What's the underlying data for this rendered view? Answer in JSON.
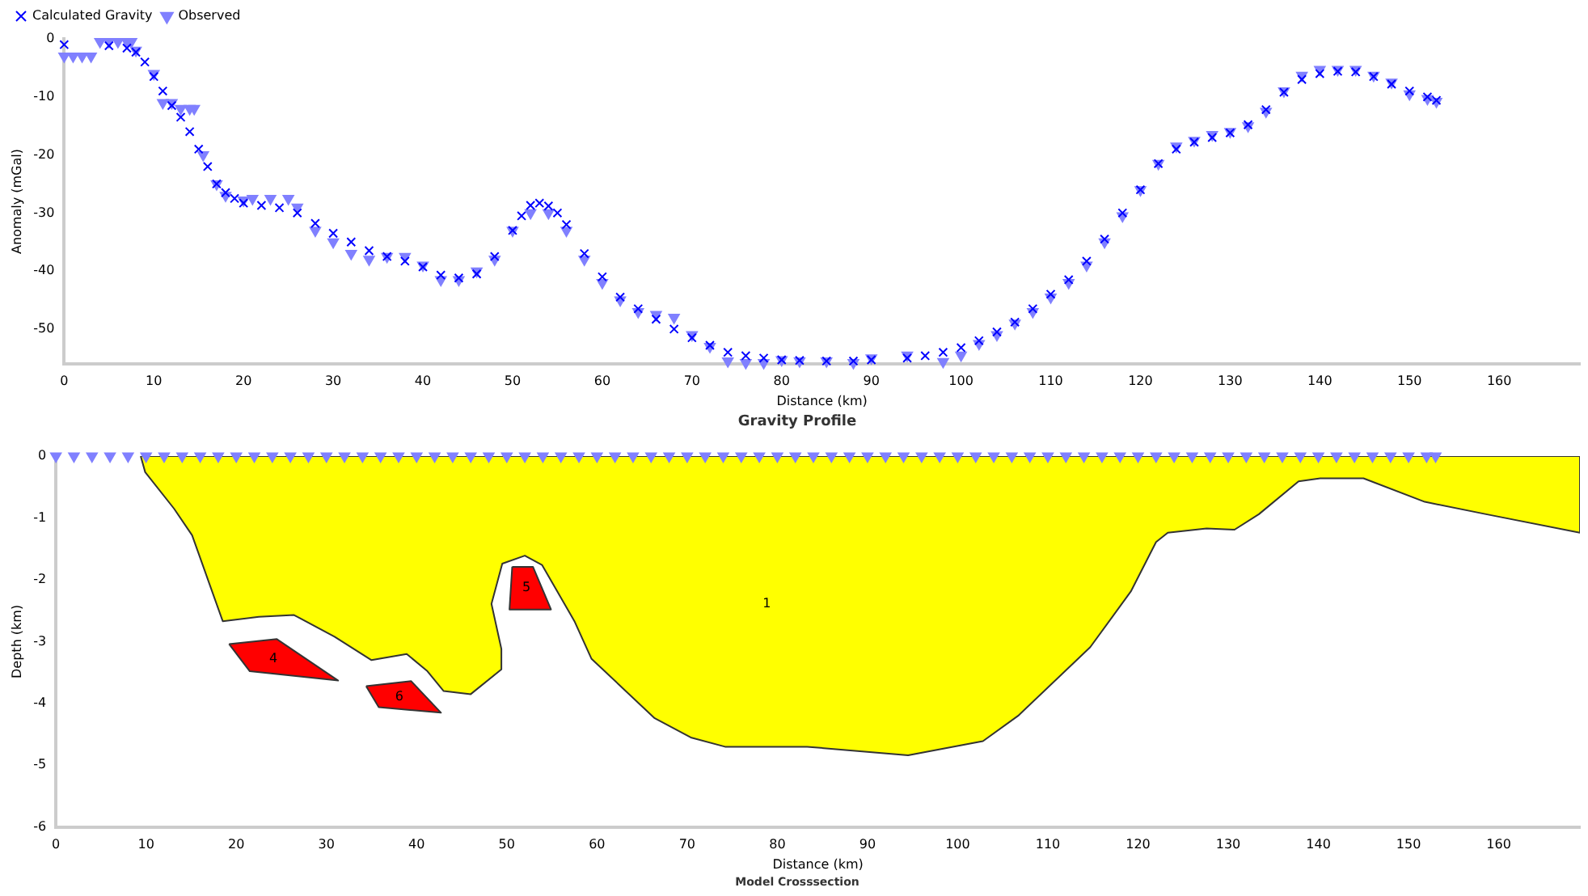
{
  "chart_data": [
    {
      "type": "scatter",
      "title": "Gravity Profile",
      "xlabel": "Distance (km)",
      "ylabel": "Anomaly (mGal)",
      "xlim": [
        0,
        169
      ],
      "ylim": [
        -56,
        0
      ],
      "xticks": [
        0,
        10,
        20,
        30,
        40,
        50,
        60,
        70,
        80,
        90,
        100,
        110,
        120,
        130,
        140,
        150,
        160
      ],
      "yticks": [
        0,
        -10,
        -20,
        -30,
        -40,
        -50
      ],
      "grid": false,
      "legend": "top left",
      "series": [
        {
          "name": "Calculated Gravity",
          "color": "#0000ff",
          "marker": "cross",
          "x": [
            0,
            5,
            7,
            8,
            9,
            10,
            11,
            12,
            13,
            14,
            15,
            16,
            17,
            18,
            19,
            20,
            22,
            24,
            26,
            28,
            30,
            32,
            34,
            36,
            38,
            40,
            42,
            44,
            46,
            48,
            50,
            51,
            52,
            53,
            54,
            55,
            56,
            58,
            60,
            62,
            64,
            66,
            68,
            70,
            72,
            74,
            76,
            78,
            80,
            82,
            85,
            88,
            90,
            94,
            96,
            98,
            100,
            102,
            104,
            106,
            108,
            110,
            112,
            114,
            116,
            118,
            120,
            122,
            124,
            126,
            128,
            130,
            132,
            134,
            136,
            138,
            140,
            142,
            144,
            146,
            148,
            150,
            152,
            153
          ],
          "values": [
            -1,
            -1.2,
            -1.6,
            -2.3,
            -4,
            -6.5,
            -9,
            -11.5,
            -13.5,
            -16,
            -19,
            -22,
            -25,
            -26.5,
            -27.5,
            -28.3,
            -28.7,
            -29.1,
            -30,
            -31.8,
            -33.5,
            -35,
            -36.5,
            -37.5,
            -38.3,
            -39.3,
            -40.7,
            -41.2,
            -40.5,
            -37.5,
            -33,
            -30.5,
            -28.7,
            -28.3,
            -28.8,
            -30,
            -32,
            -37,
            -41,
            -44.5,
            -46.5,
            -48.3,
            -50,
            -51.5,
            -52.8,
            -54,
            -54.6,
            -55,
            -55.3,
            -55.4,
            -55.5,
            -55.5,
            -55.3,
            -55,
            -54.6,
            -54,
            -53.2,
            -52,
            -50.5,
            -48.8,
            -46.5,
            -44,
            -41.5,
            -38.3,
            -34.5,
            -30,
            -26,
            -21.5,
            -19,
            -17.8,
            -17,
            -16.2,
            -14.8,
            -12.2,
            -9.2,
            -7,
            -6,
            -5.6,
            -5.7,
            -6.5,
            -7.8,
            -9,
            -10,
            -10.6
          ]
        },
        {
          "name": "Observed",
          "color": "#8080ff",
          "marker": "triangle",
          "x": [
            0,
            1,
            2,
            3,
            4,
            5,
            6,
            7,
            7.5,
            8,
            10,
            11,
            12,
            13,
            14,
            14.5,
            15.5,
            17,
            18,
            20,
            21,
            23,
            25,
            26,
            28,
            30,
            32,
            34,
            36,
            38,
            40,
            42,
            44,
            46,
            48,
            50,
            52,
            54,
            56,
            58,
            60,
            62,
            64,
            66,
            68,
            70,
            72,
            74,
            76,
            78,
            80,
            82,
            85,
            88,
            90,
            94,
            98,
            100,
            102,
            104,
            106,
            108,
            110,
            112,
            114,
            116,
            118,
            120,
            122,
            124,
            126,
            128,
            130,
            132,
            134,
            136,
            138,
            140,
            142,
            144,
            146,
            148,
            150,
            152,
            153
          ],
          "values": [
            -3,
            -3,
            -3,
            -3,
            -0.5,
            -0.5,
            -0.5,
            -0.5,
            -0.5,
            -2,
            -6,
            -11,
            -11,
            -12,
            -12,
            -12,
            -20,
            -25,
            -27,
            -27.8,
            -27.5,
            -27.5,
            -27.5,
            -29,
            -33,
            -35,
            -37,
            -38,
            -37.5,
            -37.5,
            -39,
            -41.5,
            -41.5,
            -40,
            -38,
            -33,
            -30,
            -30,
            -33,
            -38,
            -42,
            -45,
            -47,
            -47.5,
            -48,
            -51,
            -53,
            -55.5,
            -55.8,
            -55.8,
            -55.3,
            -55.5,
            -55.5,
            -55.8,
            -55,
            -54.5,
            -55.6,
            -54.5,
            -52.5,
            -51,
            -49,
            -47,
            -44.5,
            -42,
            -39,
            -35,
            -30.5,
            -26,
            -21.5,
            -18.5,
            -17.5,
            -16.5,
            -16,
            -15,
            -12.5,
            -9,
            -6.3,
            -5.3,
            -5.3,
            -5.3,
            -6.3,
            -7.5,
            -9.5,
            -10.3,
            -10.8
          ]
        }
      ]
    },
    {
      "type": "area",
      "title": "Model Crosssection",
      "xlabel": "Distance (km)",
      "ylabel": "Depth (km)",
      "xlim": [
        0,
        169
      ],
      "ylim": [
        -6,
        0
      ],
      "xticks": [
        0,
        10,
        20,
        30,
        40,
        50,
        60,
        70,
        80,
        90,
        100,
        110,
        120,
        130,
        140,
        150,
        160
      ],
      "yticks": [
        0,
        -1,
        -2,
        -3,
        -4,
        -5,
        -6
      ],
      "grid": false,
      "legend": false,
      "series": [
        {
          "name": "1",
          "color": "#ffff00",
          "x": [
            9.4,
            9.9,
            13.1,
            15.1,
            18.5,
            22.5,
            26.4,
            30.9,
            35,
            38.9,
            41.2,
            43,
            46,
            49.4,
            49.4,
            48.3,
            49.5,
            52,
            53.9,
            57.5,
            59.4,
            66.4,
            70.4,
            74.2,
            79.7,
            83.3,
            94.5,
            102.8,
            106.7,
            114.7,
            119.2,
            122,
            123.3,
            127.6,
            130.7,
            133.4,
            137.8,
            140.2,
            145,
            151.8,
            158.6,
            169,
            169,
            9.4
          ],
          "values": [
            0,
            -0.26,
            -0.85,
            -1.28,
            -2.67,
            -2.6,
            -2.57,
            -2.92,
            -3.3,
            -3.2,
            -3.48,
            -3.8,
            -3.85,
            -3.45,
            -3.12,
            -2.39,
            -1.74,
            -1.61,
            -1.76,
            -2.67,
            -3.28,
            -4.24,
            -4.55,
            -4.7,
            -4.7,
            -4.7,
            -4.84,
            -4.61,
            -4.2,
            -3.09,
            -2.19,
            -1.39,
            -1.24,
            -1.17,
            -1.19,
            -0.94,
            -0.41,
            -0.36,
            -0.36,
            -0.74,
            -0.94,
            -1.24,
            0,
            0
          ]
        },
        {
          "name": "4",
          "color": "#ff0000",
          "x": [
            19.2,
            24.5,
            31.3,
            21.5,
            19.2
          ],
          "values": [
            -3.04,
            -2.96,
            -3.63,
            -3.48,
            -3.04
          ]
        },
        {
          "name": "5",
          "color": "#ff0000",
          "x": [
            50.6,
            52.9,
            54.9,
            50.3,
            50.6
          ],
          "values": [
            -1.79,
            -1.79,
            -2.48,
            -2.48,
            -1.79
          ]
        },
        {
          "name": "6",
          "color": "#ff0000",
          "x": [
            34.4,
            39.4,
            42.7,
            35.8,
            34.4
          ],
          "values": [
            -3.72,
            -3.64,
            -4.15,
            -4.06,
            -3.72
          ]
        },
        {
          "type": "scatter",
          "color": "#8080ff",
          "marker": "triangle",
          "x": [
            0,
            2,
            4,
            6,
            8,
            10,
            12,
            14,
            16,
            18,
            20,
            22,
            24,
            26,
            28,
            30,
            32,
            34,
            36,
            38,
            40,
            42,
            44,
            46,
            48,
            50,
            52,
            54,
            56,
            58,
            60,
            62,
            64,
            66,
            68,
            70,
            72,
            74,
            76,
            78,
            80,
            82,
            84,
            86,
            88,
            90,
            92,
            94,
            96,
            98,
            100,
            102,
            104,
            106,
            108,
            110,
            112,
            114,
            116,
            118,
            120,
            122,
            124,
            126,
            128,
            130,
            132,
            134,
            136,
            138,
            140,
            142,
            144,
            146,
            148,
            150,
            152,
            153
          ],
          "values": [
            0,
            0,
            0,
            0,
            0,
            0,
            0,
            0,
            0,
            0,
            0,
            0,
            0,
            0,
            0,
            0,
            0,
            0,
            0,
            0,
            0,
            0,
            0,
            0,
            0,
            0,
            0,
            0,
            0,
            0,
            0,
            0,
            0,
            0,
            0,
            0,
            0,
            0,
            0,
            0,
            0,
            0,
            0,
            0,
            0,
            0,
            0,
            0,
            0,
            0,
            0,
            0,
            0,
            0,
            0,
            0,
            0,
            0,
            0,
            0,
            0,
            0,
            0,
            0,
            0,
            0,
            0,
            0,
            0,
            0,
            0,
            0,
            0,
            0,
            0,
            0,
            0,
            0
          ]
        }
      ]
    }
  ]
}
